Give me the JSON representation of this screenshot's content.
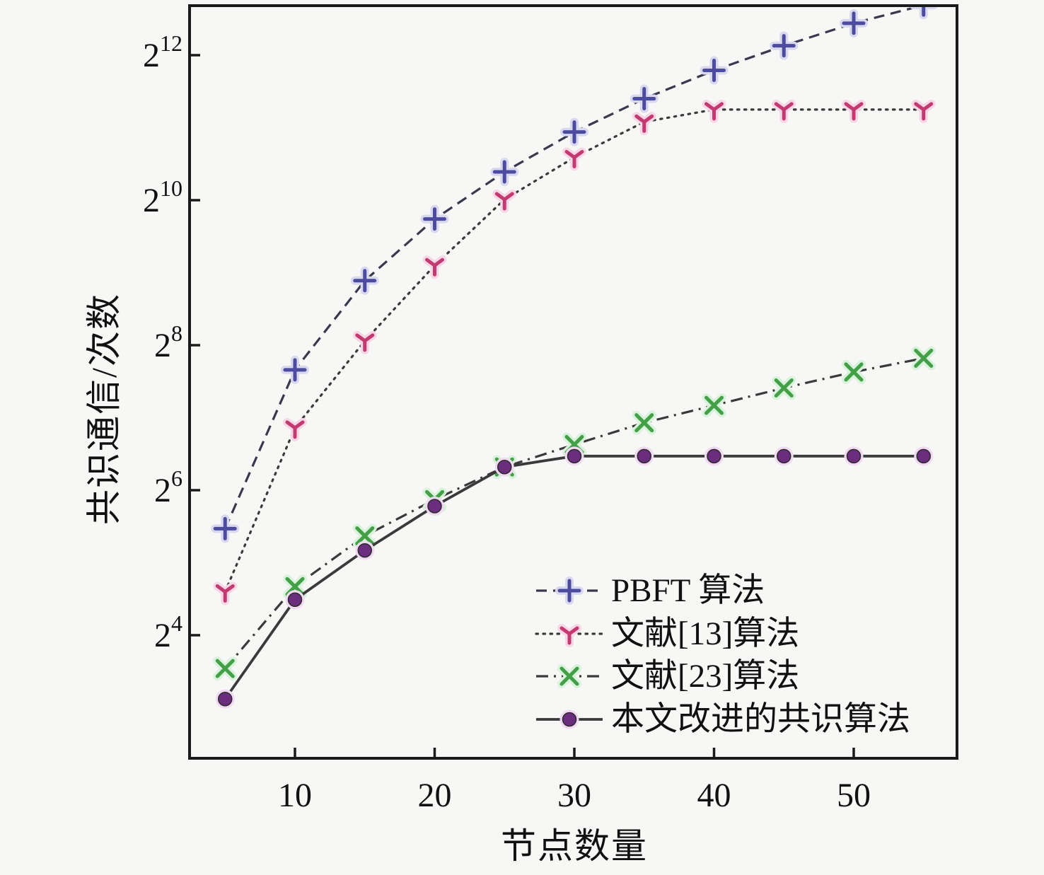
{
  "chart_data": {
    "type": "line",
    "x": [
      5,
      10,
      15,
      20,
      25,
      30,
      35,
      40,
      45,
      50,
      55
    ],
    "xlabel": "节点数量",
    "ylabel": "共识通信/次数",
    "x_ticks": [
      10,
      20,
      30,
      40,
      50
    ],
    "y_axis_base": "2",
    "y_tick_exponents": [
      4,
      6,
      8,
      10,
      12
    ],
    "xlim": [
      2.45,
      57.4
    ],
    "ylim_exponents": [
      2.3,
      12.68
    ],
    "grid": false,
    "legend_position": "lower right",
    "series": [
      {
        "name": "PBFT 算法",
        "line_style": "dashed",
        "marker": "plus",
        "line_color": "#38384e",
        "marker_color": "#4d4b9f",
        "halo_color": "#d8d8ef",
        "log2_values": [
          5.47,
          7.66,
          8.89,
          9.74,
          10.39,
          10.94,
          11.4,
          11.79,
          12.13,
          12.44,
          12.69
        ]
      },
      {
        "name": "文献[13]算法",
        "line_style": "dotted",
        "marker": "tri-down",
        "line_color": "#3a3a3a",
        "marker_color": "#c23a70",
        "halo_color": "#f7d7e6",
        "log2_values": [
          4.6,
          6.86,
          8.06,
          9.1,
          10.01,
          10.59,
          11.08,
          11.25,
          11.25,
          11.25,
          11.25
        ]
      },
      {
        "name": "文献[23]算法",
        "line_style": "dashdot",
        "marker": "x",
        "line_color": "#3a3a3a",
        "marker_color": "#43a047",
        "halo_color": "#d9f2dc",
        "log2_values": [
          3.54,
          4.67,
          5.37,
          5.87,
          6.32,
          6.63,
          6.93,
          7.17,
          7.41,
          7.63,
          7.82
        ]
      },
      {
        "name": "本文改进的共识算法",
        "line_style": "solid",
        "marker": "circle",
        "line_color": "#3a3a3a",
        "marker_color": "#6b2d7e",
        "halo_color": "#f2d9f2",
        "log2_values": [
          3.12,
          4.49,
          5.17,
          5.78,
          6.32,
          6.47,
          6.47,
          6.47,
          6.47,
          6.47,
          6.47
        ]
      }
    ]
  },
  "frame_color": "#1a1a1a",
  "background_color": "#f7f7f5"
}
